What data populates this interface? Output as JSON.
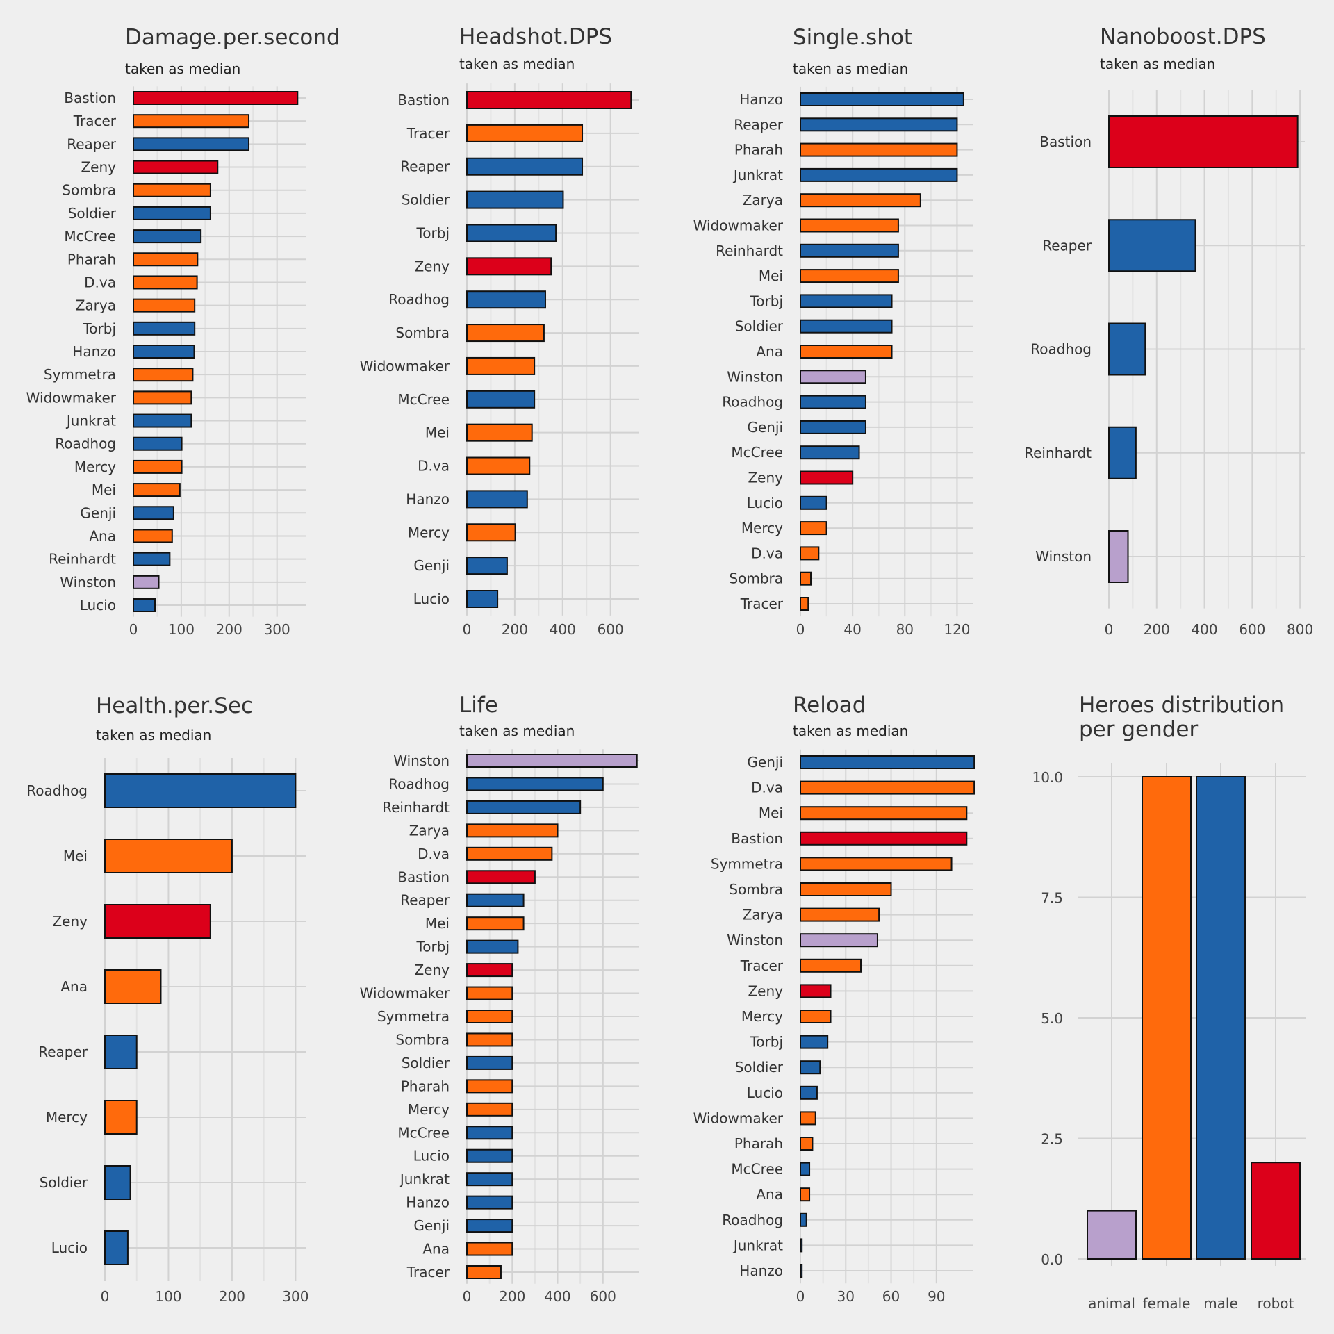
{
  "colors": {
    "blue": "#1f62a8",
    "orange": "#ff6a0c",
    "red": "#dc001a",
    "purple": "#b8a0cc",
    "background": "#efefef",
    "grid": "#d2d2d2"
  },
  "chart_data": [
    {
      "type": "bar",
      "orientation": "horizontal",
      "title": "Damage.per.second",
      "subtitle": "taken as median",
      "xlim": [
        0,
        360
      ],
      "xticks": [
        0,
        100,
        200,
        300
      ],
      "categories": [
        "Bastion",
        "Tracer",
        "Reaper",
        "Zeny",
        "Sombra",
        "Soldier",
        "McCree",
        "Pharah",
        "D.va",
        "Zarya",
        "Torbj",
        "Hanzo",
        "Symmetra",
        "Widowmaker",
        "Junkrat",
        "Roadhog",
        "Mercy",
        "Mei",
        "Genji",
        "Ana",
        "Reinhardt",
        "Winston",
        "Lucio"
      ],
      "values": [
        343,
        241,
        241,
        176,
        161,
        161,
        141,
        134,
        133,
        128,
        128,
        127,
        124,
        121,
        121,
        101,
        101,
        97,
        84,
        81,
        76,
        53,
        45
      ],
      "colors": [
        "red",
        "orange",
        "blue",
        "red",
        "orange",
        "blue",
        "blue",
        "orange",
        "orange",
        "orange",
        "blue",
        "blue",
        "orange",
        "orange",
        "blue",
        "blue",
        "orange",
        "orange",
        "blue",
        "orange",
        "blue",
        "purple",
        "blue"
      ]
    },
    {
      "type": "bar",
      "orientation": "horizontal",
      "title": "Headshot.DPS",
      "subtitle": "taken as median",
      "xlim": [
        0,
        720
      ],
      "xticks": [
        0,
        200,
        400,
        600
      ],
      "categories": [
        "Bastion",
        "Tracer",
        "Reaper",
        "Soldier",
        "Torbj",
        "Zeny",
        "Roadhog",
        "Sombra",
        "Widowmaker",
        "McCree",
        "Mei",
        "D.va",
        "Hanzo",
        "Mercy",
        "Genji",
        "Lucio"
      ],
      "values": [
        686,
        482,
        482,
        402,
        372,
        352,
        328,
        322,
        282,
        282,
        272,
        262,
        252,
        202,
        168,
        128
      ],
      "colors": [
        "red",
        "orange",
        "blue",
        "blue",
        "blue",
        "red",
        "blue",
        "orange",
        "orange",
        "blue",
        "orange",
        "orange",
        "blue",
        "orange",
        "blue",
        "blue"
      ]
    },
    {
      "type": "bar",
      "orientation": "horizontal",
      "title": "Single.shot",
      "subtitle": "taken as median",
      "xlim": [
        0,
        132
      ],
      "xticks": [
        0,
        40,
        80,
        120
      ],
      "categories": [
        "Hanzo",
        "Reaper",
        "Pharah",
        "Junkrat",
        "Zarya",
        "Widowmaker",
        "Reinhardt",
        "Mei",
        "Torbj",
        "Soldier",
        "Ana",
        "Winston",
        "Roadhog",
        "Genji",
        "McCree",
        "Zeny",
        "Lucio",
        "Mercy",
        "D.va",
        "Sombra",
        "Tracer"
      ],
      "values": [
        125,
        120,
        120,
        120,
        92,
        75,
        75,
        75,
        70,
        70,
        70,
        50,
        50,
        50,
        45,
        40,
        20,
        20,
        14,
        8,
        6
      ],
      "colors": [
        "blue",
        "blue",
        "orange",
        "blue",
        "orange",
        "orange",
        "blue",
        "orange",
        "blue",
        "blue",
        "orange",
        "purple",
        "blue",
        "blue",
        "blue",
        "red",
        "blue",
        "orange",
        "orange",
        "orange",
        "orange"
      ]
    },
    {
      "type": "bar",
      "orientation": "horizontal",
      "title": "Nanoboost.DPS",
      "subtitle": "taken as median",
      "xlim": [
        0,
        820
      ],
      "xticks": [
        0,
        200,
        400,
        600,
        800
      ],
      "categories": [
        "Bastion",
        "Reaper",
        "Roadhog",
        "Reinhardt",
        "Winston"
      ],
      "values": [
        790,
        362,
        152,
        113,
        80
      ],
      "colors": [
        "red",
        "blue",
        "blue",
        "blue",
        "purple"
      ]
    },
    {
      "type": "bar",
      "orientation": "horizontal",
      "title": "Health.per.Sec",
      "subtitle": "taken as median",
      "xlim": [
        0,
        316
      ],
      "xticks": [
        0,
        100,
        200,
        300
      ],
      "categories": [
        "Roadhog",
        "Mei",
        "Zeny",
        "Ana",
        "Reaper",
        "Mercy",
        "Soldier",
        "Lucio"
      ],
      "values": [
        300,
        200,
        166,
        88,
        50,
        50,
        40,
        36
      ],
      "colors": [
        "blue",
        "orange",
        "red",
        "orange",
        "blue",
        "orange",
        "blue",
        "blue"
      ]
    },
    {
      "type": "bar",
      "orientation": "horizontal",
      "title": "Life",
      "subtitle": "taken as median",
      "xlim": [
        0,
        760
      ],
      "xticks": [
        0,
        200,
        400,
        600
      ],
      "categories": [
        "Winston",
        "Roadhog",
        "Reinhardt",
        "Zarya",
        "D.va",
        "Bastion",
        "Reaper",
        "Mei",
        "Torbj",
        "Zeny",
        "Widowmaker",
        "Symmetra",
        "Sombra",
        "Soldier",
        "Pharah",
        "Mercy",
        "McCree",
        "Lucio",
        "Junkrat",
        "Hanzo",
        "Genji",
        "Ana",
        "Tracer"
      ],
      "values": [
        750,
        600,
        500,
        400,
        375,
        300,
        250,
        250,
        225,
        200,
        200,
        200,
        200,
        200,
        200,
        200,
        200,
        200,
        200,
        200,
        200,
        200,
        150
      ],
      "colors": [
        "purple",
        "blue",
        "blue",
        "orange",
        "orange",
        "red",
        "blue",
        "orange",
        "blue",
        "red",
        "orange",
        "orange",
        "orange",
        "blue",
        "orange",
        "orange",
        "blue",
        "blue",
        "blue",
        "blue",
        "blue",
        "orange",
        "orange"
      ]
    },
    {
      "type": "bar",
      "orientation": "horizontal",
      "title": "Reload",
      "subtitle": "taken as median",
      "xlim": [
        0,
        114
      ],
      "xticks": [
        0,
        30,
        60,
        90
      ],
      "categories": [
        "Genji",
        "D.va",
        "Mei",
        "Bastion",
        "Symmetra",
        "Sombra",
        "Zarya",
        "Winston",
        "Tracer",
        "Zeny",
        "Mercy",
        "Torbj",
        "Soldier",
        "Lucio",
        "Widowmaker",
        "Pharah",
        "McCree",
        "Ana",
        "Roadhog",
        "Junkrat",
        "Hanzo"
      ],
      "values": [
        115,
        115,
        110,
        110,
        100,
        60,
        52,
        51,
        40,
        20,
        20,
        18,
        13,
        11,
        10,
        8,
        6,
        6,
        4,
        1,
        1
      ],
      "colors": [
        "blue",
        "orange",
        "orange",
        "red",
        "orange",
        "orange",
        "orange",
        "purple",
        "orange",
        "red",
        "orange",
        "blue",
        "blue",
        "blue",
        "orange",
        "orange",
        "blue",
        "orange",
        "blue",
        "blue",
        "blue"
      ]
    },
    {
      "type": "bar",
      "orientation": "vertical",
      "title": "Heroes distribution\nper gender",
      "subtitle": "",
      "ylim": [
        0,
        10.5
      ],
      "yticks": [
        "0.0",
        "2.5",
        "5.0",
        "7.5",
        "10.0"
      ],
      "categories": [
        "animal",
        "female",
        "male",
        "robot"
      ],
      "values": [
        1,
        10,
        10,
        2
      ],
      "colors": [
        "purple",
        "orange",
        "blue",
        "red"
      ]
    }
  ]
}
